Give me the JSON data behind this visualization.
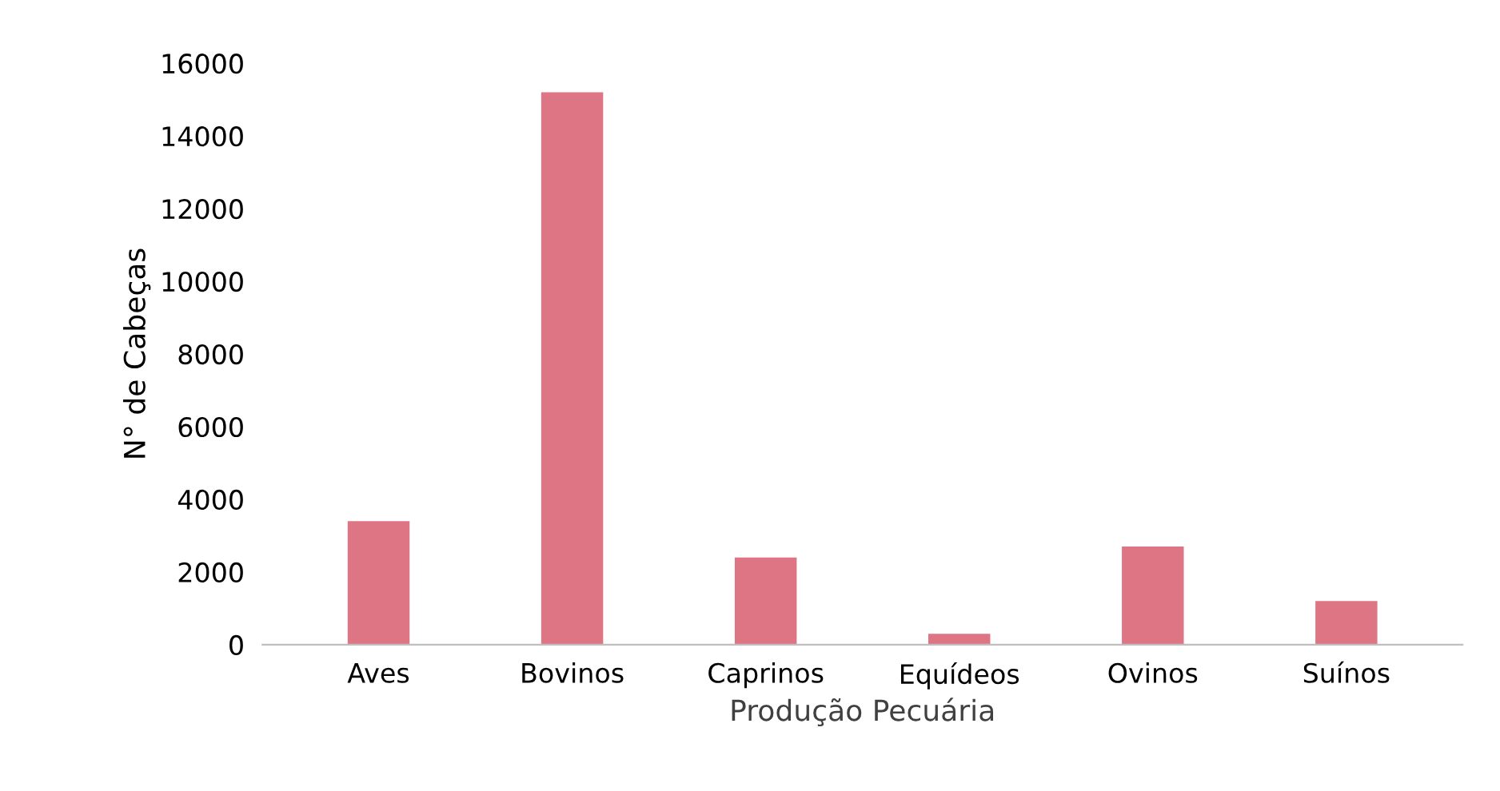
{
  "chart_data": {
    "type": "bar",
    "xlabel": "Produção Pecuária",
    "ylabel": "N° de Cabeças",
    "categories": [
      "Aves",
      "Bovinos",
      "Caprinos",
      "Equídeos",
      "Ovinos",
      "Suínos"
    ],
    "values": [
      3400,
      15200,
      2400,
      300,
      2700,
      1200
    ],
    "color": "#de7585",
    "ylim": [
      0,
      16000
    ],
    "yticks": [
      0,
      2000,
      4000,
      6000,
      8000,
      10000,
      12000,
      14000,
      16000
    ],
    "grid": false,
    "legend": false
  }
}
